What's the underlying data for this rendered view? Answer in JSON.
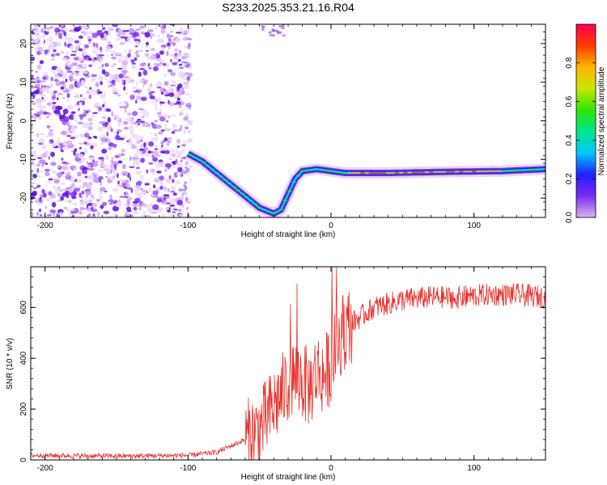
{
  "title": "S233.2025.353.21.16.R04",
  "chart_data": [
    {
      "type": "heatmap",
      "xlabel": "Height of straight line (km)",
      "ylabel": "Frequency (Hz)",
      "xlim": [
        -210,
        150
      ],
      "ylim": [
        -25,
        25
      ],
      "xticks": [
        -200,
        -100,
        0,
        100
      ],
      "yticks": [
        -20,
        -10,
        0,
        10,
        20
      ],
      "colorbar": {
        "label": "Normalized spectral amplitude",
        "range": [
          0,
          1
        ],
        "ticks": [
          "0.0",
          "0.2",
          "0.4",
          "0.6",
          "0.8"
        ],
        "colormap": [
          "#ffffff",
          "#d9b3f5",
          "#7a2cf0",
          "#1f1fff",
          "#00c8ff",
          "#00e68c",
          "#2ee600",
          "#c8e600",
          "#ffb400",
          "#ff3c00",
          "#ff0050"
        ]
      },
      "tone_track": [
        {
          "x": -100,
          "f": -8.5
        },
        {
          "x": -90,
          "f": -10.5
        },
        {
          "x": -80,
          "f": -13.5
        },
        {
          "x": -70,
          "f": -16.5
        },
        {
          "x": -60,
          "f": -19.5
        },
        {
          "x": -50,
          "f": -22.5
        },
        {
          "x": -40,
          "f": -24
        },
        {
          "x": -35,
          "f": -23
        },
        {
          "x": -30,
          "f": -19
        },
        {
          "x": -25,
          "f": -15
        },
        {
          "x": -20,
          "f": -13
        },
        {
          "x": -10,
          "f": -12.5
        },
        {
          "x": 0,
          "f": -13
        },
        {
          "x": 10,
          "f": -13.5
        },
        {
          "x": 40,
          "f": -13.5
        },
        {
          "x": 80,
          "f": -13.2
        },
        {
          "x": 120,
          "f": -13
        },
        {
          "x": 150,
          "f": -12.5
        }
      ]
    },
    {
      "type": "line",
      "xlabel": "Height of straight line (km)",
      "ylabel": "SNR (10 * v/v)",
      "xlim": [
        -210,
        150
      ],
      "ylim": [
        0,
        760
      ],
      "xticks": [
        -200,
        -100,
        0,
        100
      ],
      "yticks": [
        0,
        200,
        400,
        600
      ],
      "color": "#e8302a",
      "series": [
        {
          "x": [
            -210,
            -150,
            -100,
            -80,
            -60,
            -50,
            -40,
            -30,
            -25,
            -20,
            -15,
            -10,
            -5,
            0,
            5,
            10,
            20,
            30,
            50,
            70,
            90,
            110,
            130,
            150
          ],
          "y": [
            18,
            15,
            18,
            30,
            80,
            120,
            210,
            300,
            330,
            310,
            280,
            350,
            330,
            380,
            470,
            520,
            560,
            600,
            630,
            640,
            640,
            650,
            650,
            640
          ]
        }
      ]
    }
  ]
}
